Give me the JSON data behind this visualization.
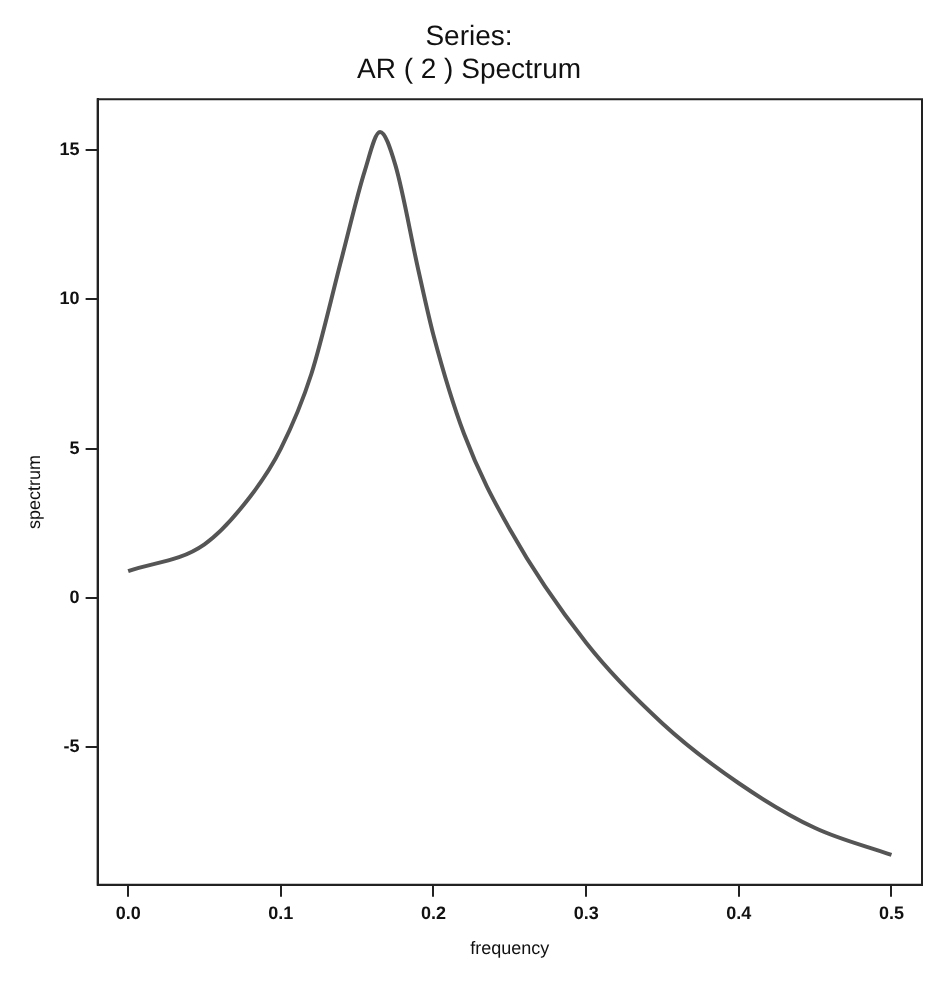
{
  "chart_data": {
    "type": "line",
    "title": "Series:",
    "subtitle": "AR ( 2 ) Spectrum",
    "xlabel": "frequency",
    "ylabel": "spectrum",
    "x": [
      0,
      0.05,
      0.08,
      0.1,
      0.12,
      0.14,
      0.155,
      0.165,
      0.175,
      0.19,
      0.2,
      0.22,
      0.25,
      0.3,
      0.35,
      0.4,
      0.45,
      0.5
    ],
    "series": [
      {
        "color": "#555555",
        "values": [
          0.9,
          1.8,
          3.4,
          5.0,
          7.5,
          11.4,
          14.3,
          15.6,
          14.5,
          11.0,
          8.8,
          5.5,
          2.3,
          -1.5,
          -4.2,
          -6.2,
          -7.7,
          -8.6
        ]
      }
    ],
    "xlim": [
      -0.02,
      0.52
    ],
    "xticks": [
      {
        "value": 0,
        "label": "0.0"
      },
      0.1,
      0.2,
      0.3,
      0.4,
      0.5
    ],
    "ylim": [
      -9.6,
      16.7
    ],
    "yticks": [
      15,
      10,
      5,
      0,
      -5
    ],
    "grid": false,
    "legend": false,
    "marker": "none",
    "line_style": "solid"
  }
}
